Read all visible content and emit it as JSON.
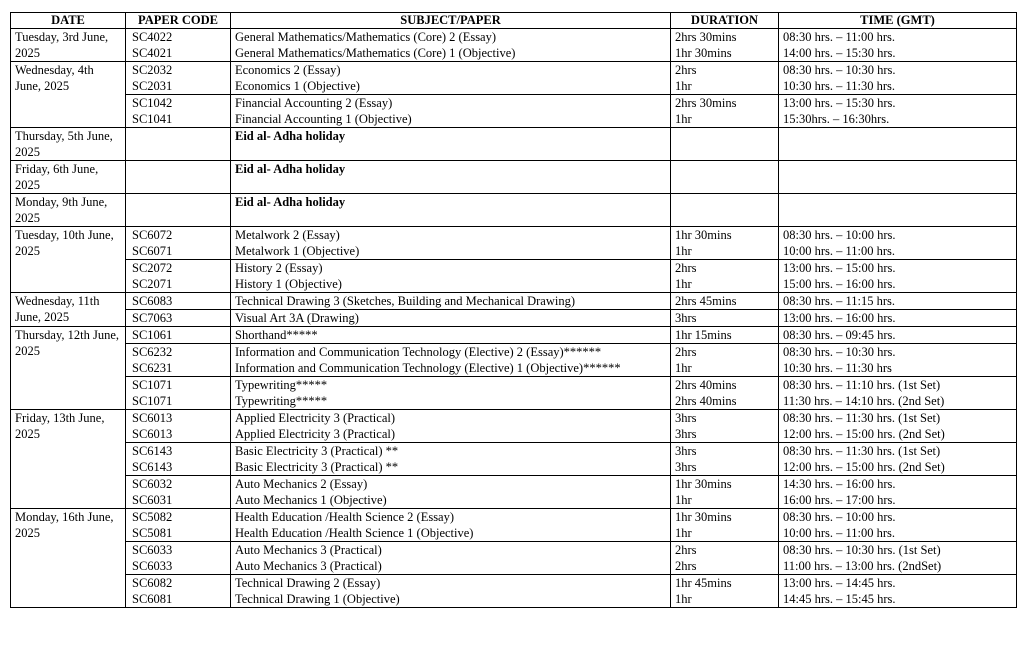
{
  "header": {
    "columns": [
      "DATE",
      "PAPER CODE",
      "SUBJECT/PAPER",
      "DURATION",
      "TIME (GMT)"
    ]
  },
  "groups": [
    {
      "date": "Tuesday, 3rd June, 2025",
      "blocks": [
        {
          "lines": [
            [
              "SC4022",
              "General Mathematics/Mathematics (Core) 2 (Essay)",
              "2hrs 30mins",
              "08:30 hrs. – 11:00 hrs."
            ],
            [
              "SC4021",
              "General Mathematics/Mathematics (Core) 1 (Objective)",
              "1hr 30mins",
              "14:00 hrs. – 15:30 hrs."
            ]
          ]
        }
      ]
    },
    {
      "date": "Wednesday, 4th June, 2025",
      "blocks": [
        {
          "lines": [
            [
              "SC2032",
              "Economics 2 (Essay)",
              "2hrs",
              "08:30 hrs. – 10:30 hrs."
            ],
            [
              "SC2031",
              "Economics 1 (Objective)",
              "1hr",
              "10:30 hrs. – 11:30 hrs."
            ]
          ]
        },
        {
          "lines": [
            [
              "SC1042",
              "Financial Accounting 2 (Essay)",
              "2hrs 30mins",
              "13:00 hrs. – 15:30 hrs."
            ],
            [
              "SC1041",
              "Financial Accounting 1 (Objective)",
              "1hr",
              "15:30hrs. – 16:30hrs."
            ]
          ]
        }
      ]
    },
    {
      "date": "Thursday, 5th June, 2025",
      "blocks": [
        {
          "lines": [
            [
              null,
              "Eid al- Adha holiday"
            ]
          ]
        }
      ]
    },
    {
      "date": "Friday, 6th June, 2025",
      "blocks": [
        {
          "lines": [
            [
              null,
              "Eid al- Adha holiday"
            ]
          ]
        }
      ]
    },
    {
      "date": "Monday, 9th June, 2025",
      "blocks": [
        {
          "lines": [
            [
              null,
              "Eid al- Adha holiday"
            ]
          ]
        }
      ]
    },
    {
      "date": "Tuesday, 10th June, 2025",
      "blocks": [
        {
          "lines": [
            [
              "SC6072",
              "Metalwork 2 (Essay)",
              "1hr 30mins",
              "08:30 hrs. – 10:00 hrs."
            ],
            [
              "SC6071",
              "Metalwork 1 (Objective)",
              "1hr",
              "10:00 hrs. – 11:00 hrs."
            ]
          ]
        },
        {
          "lines": [
            [
              "SC2072",
              "History 2 (Essay)",
              "2hrs",
              "13:00 hrs. – 15:00 hrs."
            ],
            [
              "SC2071",
              "History 1 (Objective)",
              "1hr",
              "15:00 hrs. – 16:00 hrs."
            ]
          ]
        }
      ]
    },
    {
      "date": "Wednesday, 11th June, 2025",
      "blocks": [
        {
          "lines": [
            [
              "SC6083",
              "Technical Drawing 3 (Sketches, Building and Mechanical Drawing)",
              "2hrs 45mins",
              "08:30 hrs. – 11:15 hrs."
            ]
          ]
        },
        {
          "lines": [
            [
              "SC7063",
              "Visual Art 3A (Drawing)",
              "3hrs",
              "13:00 hrs. – 16:00 hrs."
            ]
          ]
        }
      ]
    },
    {
      "date": "Thursday, 12th June, 2025",
      "blocks": [
        {
          "lines": [
            [
              "SC1061",
              "Shorthand*****",
              "1hr 15mins",
              "08:30 hrs. – 09:45 hrs."
            ]
          ]
        },
        {
          "lines": [
            [
              "SC6232",
              "Information and Communication Technology (Elective) 2 (Essay)******",
              "2hrs",
              "08:30 hrs. – 10:30 hrs."
            ],
            [
              "SC6231",
              "Information and Communication Technology (Elective) 1 (Objective)******",
              "1hr",
              "10:30 hrs. – 11:30 hrs"
            ]
          ]
        },
        {
          "lines": [
            [
              "SC1071",
              "Typewriting*****",
              "2hrs 40mins",
              "08:30 hrs. – 11:10 hrs. (1st Set)"
            ],
            [
              "SC1071",
              "Typewriting*****",
              "2hrs 40mins",
              "11:30 hrs. – 14:10 hrs. (2nd Set)"
            ]
          ]
        }
      ]
    },
    {
      "date": "Friday, 13th June, 2025",
      "blocks": [
        {
          "lines": [
            [
              "SC6013",
              "Applied Electricity 3 (Practical)",
              "3hrs",
              "08:30 hrs. – 11:30 hrs. (1st Set)"
            ],
            [
              "SC6013",
              "Applied Electricity 3 (Practical)",
              "3hrs",
              "12:00 hrs. – 15:00 hrs. (2nd Set)"
            ]
          ]
        },
        {
          "lines": [
            [
              "SC6143",
              "Basic Electricity 3 (Practical) **",
              "3hrs",
              "08:30 hrs. – 11:30 hrs. (1st Set)"
            ],
            [
              "SC6143",
              "Basic Electricity 3 (Practical) **",
              "3hrs",
              "12:00 hrs. – 15:00 hrs. (2nd Set)"
            ]
          ]
        },
        {
          "lines": [
            [
              "SC6032",
              "Auto Mechanics 2 (Essay)",
              "1hr 30mins",
              "14:30 hrs. – 16:00 hrs."
            ],
            [
              "SC6031",
              "Auto Mechanics 1 (Objective)",
              "1hr",
              "16:00 hrs. – 17:00 hrs."
            ]
          ]
        }
      ]
    },
    {
      "date": "Monday, 16th June, 2025",
      "blocks": [
        {
          "lines": [
            [
              "SC5082",
              "Health Education /Health Science 2 (Essay)",
              "1hr 30mins",
              "08:30 hrs. – 10:00 hrs."
            ],
            [
              "SC5081",
              "Health Education /Health Science 1 (Objective)",
              "1hr",
              "10:00 hrs. – 11:00 hrs."
            ]
          ]
        },
        {
          "lines": [
            [
              "SC6033",
              "Auto Mechanics 3 (Practical)",
              "2hrs",
              "08:30 hrs. – 10:30 hrs. (1st Set)"
            ],
            [
              "SC6033",
              "Auto Mechanics 3 (Practical)",
              "2hrs",
              "11:00 hrs. – 13:00 hrs. (2ndSet)"
            ]
          ]
        },
        {
          "lines": [
            [
              "SC6082",
              "Technical Drawing 2 (Essay)",
              "1hr 45mins",
              "13:00 hrs. – 14:45 hrs."
            ],
            [
              "SC6081",
              "Technical Drawing 1 (Objective)",
              "1hr",
              "14:45 hrs. – 15:45 hrs."
            ]
          ]
        }
      ]
    }
  ]
}
